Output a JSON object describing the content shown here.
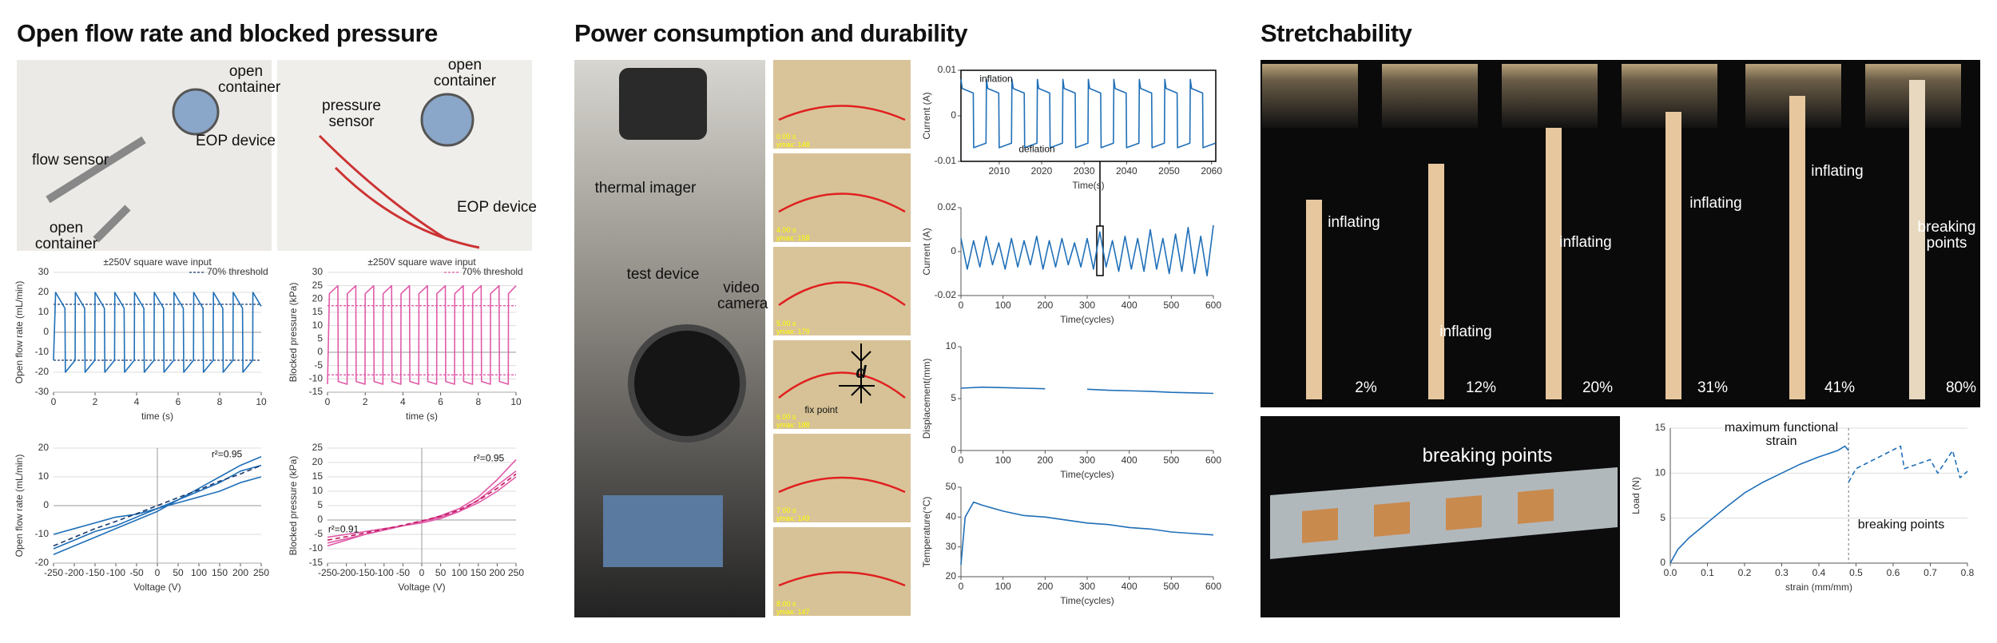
{
  "sections": [
    "Open flow rate and blocked pressure",
    "Power consumption and durability",
    "Stretchability"
  ],
  "photo_labels": {
    "flow_setup": [
      "open container",
      "EOP device",
      "flow sensor",
      "open container"
    ],
    "pressure_setup": [
      "open container",
      "pressure sensor",
      "EOP device"
    ],
    "power_setup": [
      "thermal imager",
      "test device",
      "video camera"
    ],
    "frames": [
      [
        "0.00 s",
        "ymax: 148"
      ],
      [
        "4.00 s",
        "ymax: 158"
      ],
      [
        "5.00 s",
        "ymax: 179"
      ],
      [
        "6.00 s",
        "ymax: 188"
      ],
      [
        "7.00 s",
        "ymax: 149"
      ],
      [
        "8.00 s",
        "ymax: 147"
      ]
    ],
    "frame_marks": [
      "d",
      "fix point"
    ],
    "stretch_strains": [
      "2%",
      "12%",
      "20%",
      "31%",
      "41%",
      "80%"
    ],
    "stretch_labels": [
      "inflating",
      "inflating",
      "inflating",
      "inflating",
      "inflating",
      "breaking points"
    ],
    "strip_label": "breaking points"
  },
  "chart_data": [
    {
      "type": "line",
      "title": "±250V square wave input",
      "xlabel": "time (s)",
      "ylabel": "Open flow rate (mL/min)",
      "xlim": [
        0,
        10
      ],
      "xticks": [
        0,
        2,
        4,
        6,
        8,
        10
      ],
      "ylim": [
        -30,
        30
      ],
      "yticks": [
        -30,
        -20,
        -10,
        0,
        10,
        20,
        30
      ],
      "grid": true,
      "zero_lines": true,
      "x": [
        0,
        0.1,
        0.55,
        0.57,
        1.04,
        1.05,
        1.5,
        1.52,
        1.99,
        2.0,
        2.45,
        2.47,
        2.94,
        2.95,
        3.4,
        3.42,
        3.89,
        3.9,
        4.35,
        4.37,
        4.84,
        4.85,
        5.3,
        5.32,
        5.79,
        5.8,
        6.25,
        6.27,
        6.74,
        6.75,
        7.2,
        7.22,
        7.69,
        7.7,
        8.15,
        8.17,
        8.64,
        8.65,
        9.1,
        9.12,
        9.59,
        9.6,
        10
      ],
      "series": [
        {
          "color": "#1f6fb8",
          "values": [
            -14,
            20,
            12,
            -20,
            -14,
            20,
            12,
            -20,
            -14,
            20,
            12,
            -20,
            -14,
            20,
            12,
            -20,
            -14,
            20,
            12,
            -20,
            -14,
            20,
            12,
            -20,
            -14,
            20,
            12,
            -20,
            -14,
            20,
            12,
            -20,
            -14,
            20,
            12,
            -20,
            -14,
            20,
            12,
            -20,
            -14,
            20,
            13
          ]
        }
      ],
      "hlines": {
        "name": "70% threshold",
        "color": "#1a3a6e",
        "values": [
          14,
          -14
        ]
      }
    },
    {
      "type": "line",
      "title": "±250V square wave input",
      "xlabel": "time (s)",
      "ylabel": "Blocked pressure (kPa)",
      "xlim": [
        0,
        10
      ],
      "xticks": [
        0,
        2,
        4,
        6,
        8,
        10
      ],
      "ylim": [
        -15,
        30
      ],
      "yticks": [
        -15,
        -10,
        -5,
        0,
        5,
        10,
        15,
        20,
        25,
        30
      ],
      "grid": true,
      "zero_lines": true,
      "x": [
        0,
        0.1,
        0.55,
        0.57,
        1.04,
        1.05,
        1.5,
        1.52,
        1.99,
        2.0,
        2.45,
        2.47,
        2.94,
        2.95,
        3.4,
        3.42,
        3.89,
        3.9,
        4.35,
        4.37,
        4.84,
        4.85,
        5.3,
        5.32,
        5.79,
        5.8,
        6.25,
        6.27,
        6.74,
        6.75,
        7.2,
        7.22,
        7.69,
        7.7,
        8.15,
        8.17,
        8.64,
        8.65,
        9.1,
        9.12,
        9.59,
        9.6,
        10
      ],
      "series": [
        {
          "color": "#e05aa8",
          "values": [
            -12,
            22,
            25,
            -11,
            -12,
            22,
            25,
            -11,
            -12,
            22,
            25,
            -11,
            -12,
            22,
            25,
            -11,
            -12,
            22,
            25,
            -11,
            -12,
            22,
            25,
            -11,
            -12,
            22,
            25,
            -11,
            -12,
            22,
            25,
            -11,
            -12,
            22,
            25,
            -11,
            -12,
            22,
            25,
            -11,
            -12,
            22,
            25
          ]
        }
      ],
      "hlines": {
        "name": "70% threshold",
        "color": "#e05aa8",
        "values": [
          17.5,
          -8.5
        ]
      }
    },
    {
      "type": "line",
      "xlabel": "Voltage (V)",
      "ylabel": "Open flow rate (mL/min)",
      "xlim": [
        -250,
        250
      ],
      "xticks": [
        -250,
        -200,
        -150,
        -100,
        -50,
        0,
        50,
        100,
        150,
        200,
        250
      ],
      "ylim": [
        -20,
        20
      ],
      "yticks": [
        -20,
        -10,
        0,
        10,
        20
      ],
      "grid": true,
      "zero_lines": true,
      "x": [
        -250,
        -200,
        -150,
        -100,
        -50,
        0,
        50,
        100,
        150,
        200,
        250
      ],
      "series": [
        {
          "color": "#1f6fb8",
          "values": [
            -17,
            -14,
            -11,
            -8,
            -5,
            -2,
            2,
            6,
            10,
            14,
            17
          ]
        },
        {
          "color": "#1f6fb8",
          "values": [
            -15,
            -12,
            -9,
            -7,
            -4,
            -1,
            2,
            5,
            8,
            12,
            14
          ]
        },
        {
          "color": "#1f6fb8",
          "values": [
            -10,
            -8,
            -6,
            -4,
            -3,
            -1,
            1,
            3,
            5,
            8,
            10
          ]
        },
        {
          "color": "#1a3a6e",
          "dashed": true,
          "values": [
            -14,
            -11,
            -8,
            -5.5,
            -2.8,
            0,
            2.8,
            5.5,
            8.5,
            11,
            14
          ]
        }
      ],
      "annotations": [
        "r²=0.95"
      ]
    },
    {
      "type": "line",
      "xlabel": "Voltage (V)",
      "ylabel": "Blocked pressure (kPa)",
      "xlim": [
        -250,
        250
      ],
      "xticks": [
        -250,
        -200,
        -150,
        -100,
        -50,
        0,
        50,
        100,
        150,
        200,
        250
      ],
      "ylim": [
        -15,
        25
      ],
      "yticks": [
        -15,
        -10,
        -5,
        0,
        5,
        10,
        15,
        20,
        25
      ],
      "grid": true,
      "zero_lines": true,
      "x": [
        -250,
        -200,
        -150,
        -100,
        -50,
        0,
        50,
        100,
        150,
        200,
        250
      ],
      "series": [
        {
          "color": "#e05aa8",
          "values": [
            -9,
            -7,
            -5,
            -3.5,
            -2,
            -0.5,
            1.5,
            4,
            8,
            14,
            21
          ]
        },
        {
          "color": "#e05aa8",
          "values": [
            -8,
            -6.5,
            -5,
            -3.5,
            -2,
            -0.5,
            1,
            3,
            6,
            10,
            15
          ]
        },
        {
          "color": "#e05aa8",
          "values": [
            -6,
            -5,
            -4,
            -3,
            -2,
            -1,
            0.5,
            3,
            7,
            12,
            17
          ]
        },
        {
          "color": "#c2185b",
          "dashed": true,
          "values": [
            -7,
            -5.8,
            -4.5,
            -3.2,
            -1.8,
            -0.3,
            1.3,
            3.5,
            6.8,
            11,
            16
          ]
        }
      ],
      "annotations": [
        "r²=0.95",
        "r²=0.91"
      ]
    },
    {
      "type": "line",
      "xlabel": "Time(s)",
      "ylabel": "Current (A)",
      "frame": "box",
      "xlim": [
        2001,
        2061
      ],
      "xticks": [
        2010,
        2020,
        2030,
        2040,
        2050,
        2060
      ],
      "ylim": [
        -0.01,
        0.01
      ],
      "yticks": [
        -0.01,
        0,
        0.01
      ],
      "x": [
        2001,
        2001.3,
        2003.9,
        2004,
        2006.9,
        2007,
        2007.3,
        2009.9,
        2010,
        2012.9,
        2013,
        2013.3,
        2015.9,
        2016,
        2018.9,
        2019,
        2019.3,
        2021.9,
        2022,
        2024.9,
        2025,
        2025.3,
        2027.9,
        2028,
        2030.9,
        2031,
        2031.3,
        2033.9,
        2034,
        2036.9,
        2037,
        2037.3,
        2039.9,
        2040,
        2042.9,
        2043,
        2043.3,
        2045.9,
        2046,
        2048.9,
        2049,
        2049.3,
        2051.9,
        2052,
        2054.9,
        2055,
        2055.3,
        2057.9,
        2058,
        2060.9
      ],
      "series": [
        {
          "color": "#1f6fb8",
          "values": [
            0.008,
            0.006,
            0.005,
            -0.007,
            -0.006,
            0.008,
            0.006,
            0.005,
            -0.007,
            -0.006,
            0.008,
            0.006,
            0.005,
            -0.007,
            -0.006,
            0.008,
            0.006,
            0.005,
            -0.007,
            -0.006,
            0.008,
            0.006,
            0.005,
            -0.007,
            -0.006,
            0.008,
            0.006,
            0.005,
            -0.007,
            -0.006,
            0.008,
            0.006,
            0.005,
            -0.007,
            -0.006,
            0.008,
            0.006,
            0.005,
            -0.007,
            -0.006,
            0.008,
            0.006,
            0.005,
            -0.007,
            -0.006,
            0.008,
            0.006,
            0.005,
            -0.007,
            -0.006
          ]
        }
      ],
      "annotations": [
        "inflation",
        "deflation"
      ]
    },
    {
      "type": "line",
      "xlabel": "Time(cycles)",
      "ylabel": "Current (A)",
      "xlim": [
        0,
        600
      ],
      "xticks": [
        0,
        100,
        200,
        300,
        400,
        500,
        600
      ],
      "ylim": [
        -0.02,
        0.02
      ],
      "yticks": [
        -0.02,
        0,
        0.02
      ],
      "x": [
        0,
        15,
        30,
        45,
        60,
        75,
        90,
        105,
        120,
        135,
        150,
        165,
        180,
        195,
        210,
        225,
        240,
        255,
        270,
        285,
        300,
        315,
        330,
        345,
        360,
        375,
        390,
        405,
        420,
        435,
        450,
        465,
        480,
        495,
        510,
        525,
        540,
        555,
        570,
        585,
        600
      ],
      "series": [
        {
          "color": "#1f6fb8",
          "values": [
            0.006,
            -0.008,
            0.005,
            -0.007,
            0.007,
            -0.006,
            0.004,
            -0.008,
            0.006,
            -0.007,
            0.005,
            -0.006,
            0.007,
            -0.008,
            0.005,
            -0.007,
            0.006,
            -0.006,
            0.004,
            -0.007,
            0.006,
            -0.008,
            0.009,
            -0.007,
            0.005,
            -0.009,
            0.007,
            -0.008,
            0.006,
            -0.009,
            0.01,
            -0.008,
            0.006,
            -0.01,
            0.008,
            -0.009,
            0.011,
            -0.01,
            0.007,
            -0.011,
            0.012
          ]
        }
      ]
    },
    {
      "type": "line",
      "xlabel": "Time(cycles)",
      "ylabel": "Displacement(mm)",
      "xlim": [
        0,
        600
      ],
      "xticks": [
        0,
        100,
        200,
        300,
        400,
        500,
        600
      ],
      "ylim": [
        0,
        10
      ],
      "yticks": [
        0,
        5,
        10
      ],
      "x": [
        0,
        50,
        100,
        150,
        200,
        250,
        300,
        350,
        400,
        450,
        500,
        550,
        600
      ],
      "series": [
        {
          "color": "#1f6fb8",
          "values": [
            6.0,
            6.1,
            6.05,
            6.0,
            5.95,
            null,
            5.9,
            5.8,
            5.75,
            5.7,
            5.6,
            5.55,
            5.5
          ]
        }
      ]
    },
    {
      "type": "line",
      "xlabel": "Time(cycles)",
      "ylabel": "Temperature(°C)",
      "xlim": [
        0,
        600
      ],
      "xticks": [
        0,
        100,
        200,
        300,
        400,
        500,
        600
      ],
      "ylim": [
        20,
        50
      ],
      "yticks": [
        20,
        30,
        40,
        50
      ],
      "x": [
        0,
        10,
        30,
        50,
        100,
        150,
        200,
        250,
        300,
        350,
        400,
        450,
        500,
        550,
        600
      ],
      "series": [
        {
          "color": "#1f6fb8",
          "values": [
            24,
            40,
            45,
            44,
            42,
            40.5,
            40,
            39,
            38,
            37.5,
            36.5,
            36,
            35,
            34.5,
            34
          ]
        }
      ]
    },
    {
      "type": "line",
      "xlabel": "strain (mm/mm)",
      "ylabel": "Load (N)",
      "xlim": [
        0,
        0.8
      ],
      "xticks": [
        {
          "value": 0,
          "label": "0.0"
        },
        0.1,
        0.2,
        0.3,
        0.4,
        0.5,
        0.6,
        0.7,
        0.8
      ],
      "ylim": [
        0,
        15
      ],
      "yticks": [
        0,
        5,
        10,
        15
      ],
      "grid": true,
      "vline": 0.48,
      "series": [
        {
          "color": "#1f6fb8",
          "x": [
            0,
            0.02,
            0.05,
            0.1,
            0.15,
            0.2,
            0.25,
            0.3,
            0.35,
            0.4,
            0.45,
            0.47,
            0.48
          ],
          "values": [
            0,
            1.5,
            2.8,
            4.5,
            6.2,
            7.8,
            9,
            10,
            11,
            11.8,
            12.5,
            13,
            12.5
          ]
        },
        {
          "color": "#1f6fb8",
          "dashed": true,
          "x": [
            0.48,
            0.5,
            0.62,
            0.63,
            0.7,
            0.72,
            0.76,
            0.78,
            0.8
          ],
          "values": [
            9,
            10.5,
            13,
            10.5,
            11.5,
            10,
            12.5,
            9.5,
            10.2
          ]
        }
      ],
      "annotations": [
        "maximum functional strain",
        "breaking points"
      ]
    }
  ]
}
